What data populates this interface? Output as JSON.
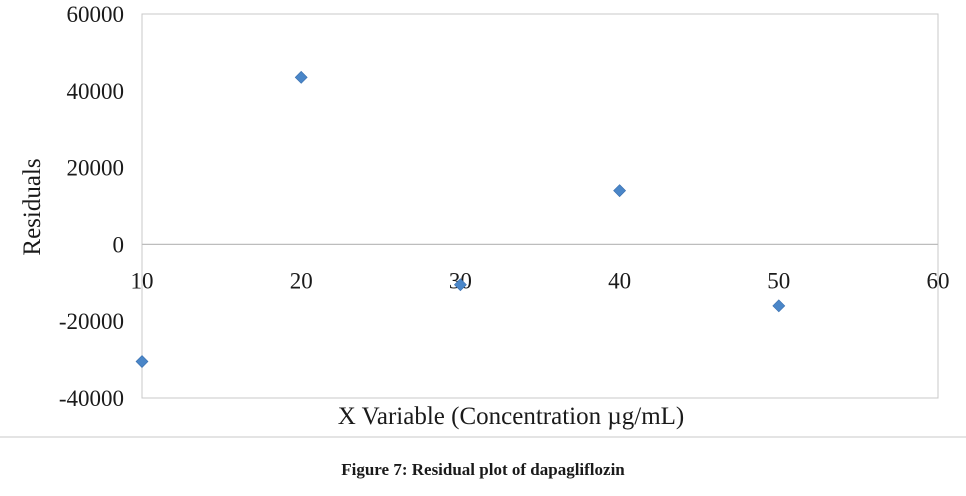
{
  "chart_data": {
    "type": "scatter",
    "title": "",
    "xlabel": "X Variable (Concentration µg/mL)",
    "ylabel": "Residuals",
    "xlim": [
      10,
      60
    ],
    "ylim": [
      -40000,
      60000
    ],
    "x_ticks": [
      10,
      20,
      30,
      40,
      50,
      60
    ],
    "y_ticks": [
      -40000,
      -20000,
      0,
      20000,
      40000,
      60000
    ],
    "x_tick_labels": [
      "10",
      "20",
      "30",
      "40",
      "50",
      "60"
    ],
    "y_tick_labels": [
      "-40000",
      "-20000",
      "0",
      "20000",
      "40000",
      "60000"
    ],
    "grid": false,
    "marker": "diamond",
    "marker_color": "#4a86c8",
    "x": [
      10,
      20,
      30,
      40,
      50
    ],
    "y": [
      -30500,
      43500,
      -10500,
      14000,
      -16000
    ]
  },
  "caption": "Figure 7: Residual plot of dapagliflozin"
}
